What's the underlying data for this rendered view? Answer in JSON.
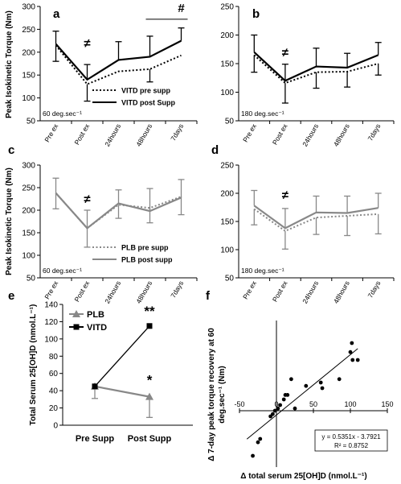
{
  "figure": {
    "shared_ylabel_top": "Peak Isokinetic Torque (Nm)",
    "shared_ylabel_mid": "Peak Isokinetic Torque (Nm)"
  },
  "chart_data": [
    {
      "panel": "a",
      "type": "line",
      "categories": [
        "Pre ex",
        "Post ex",
        "24hours",
        "48hours",
        "7days"
      ],
      "ylim": [
        50,
        300
      ],
      "yticks": [
        50,
        100,
        150,
        200,
        250,
        300
      ],
      "speed_label": "60 deg.sec⁻¹",
      "legend_position": "bottom-right",
      "significance": [
        {
          "symbol": "≠",
          "category": "Post ex",
          "y": 211
        },
        {
          "symbol": "#",
          "category": "7days",
          "y": 288,
          "bracket_from": "48hours",
          "bracket_to": "7days",
          "bracket_y": 272
        }
      ],
      "series": [
        {
          "name": "VITD pre supp",
          "style": "dotted",
          "color": "#000000",
          "values": [
            215,
            130,
            158,
            163,
            193
          ],
          "err_down": [
            35,
            37,
            0,
            28,
            0
          ],
          "err_up": [
            0,
            0,
            0,
            0,
            0
          ]
        },
        {
          "name": "VITD post Supp",
          "style": "solid",
          "color": "#000000",
          "values": [
            218,
            140,
            183,
            190,
            225
          ],
          "err_down": [
            0,
            0,
            0,
            0,
            0
          ],
          "err_up": [
            28,
            33,
            40,
            45,
            28
          ]
        }
      ]
    },
    {
      "panel": "b",
      "type": "line",
      "categories": [
        "Pre ex",
        "Post ex",
        "24hours",
        "48hours",
        "7days"
      ],
      "ylim": [
        50,
        250
      ],
      "yticks": [
        50,
        100,
        150,
        200,
        250
      ],
      "speed_label": "180 deg.sec⁻¹",
      "significance": [
        {
          "symbol": "≠",
          "category": "Post ex",
          "y": 163
        }
      ],
      "series": [
        {
          "name": "VITD pre supp",
          "style": "dotted",
          "color": "#000000",
          "values": [
            165,
            116,
            135,
            136,
            150
          ],
          "err_down": [
            30,
            35,
            28,
            27,
            20
          ],
          "err_up": [
            0,
            0,
            0,
            0,
            0
          ]
        },
        {
          "name": "VITD post Supp",
          "style": "solid",
          "color": "#000000",
          "values": [
            170,
            120,
            145,
            143,
            165
          ],
          "err_down": [
            0,
            0,
            0,
            0,
            0
          ],
          "err_up": [
            30,
            29,
            32,
            25,
            22
          ]
        }
      ]
    },
    {
      "panel": "c",
      "type": "line",
      "categories": [
        "Pre ex",
        "Post ex",
        "24hours",
        "48hours",
        "7days"
      ],
      "ylim": [
        50,
        300
      ],
      "yticks": [
        50,
        100,
        150,
        200,
        250,
        300
      ],
      "speed_label": "60 deg.sec⁻¹",
      "legend_position": "bottom-right",
      "significance": [
        {
          "symbol": "≠",
          "category": "Post ex",
          "y": 216
        }
      ],
      "series": [
        {
          "name": "PLB pre supp",
          "style": "dotted",
          "color": "#888888",
          "values": [
            238,
            160,
            212,
            205,
            230
          ],
          "err_down": [
            35,
            42,
            30,
            33,
            40
          ],
          "err_up": [
            0,
            0,
            0,
            0,
            0
          ]
        },
        {
          "name": "PLB post supp",
          "style": "solid",
          "color": "#888888",
          "values": [
            238,
            160,
            215,
            198,
            228
          ],
          "err_down": [
            0,
            0,
            0,
            0,
            0
          ],
          "err_up": [
            33,
            40,
            30,
            50,
            40
          ]
        }
      ]
    },
    {
      "panel": "d",
      "type": "line",
      "categories": [
        "Pre ex",
        "Post ex",
        "24hours",
        "48hours",
        "7days"
      ],
      "ylim": [
        50,
        250
      ],
      "yticks": [
        50,
        100,
        150,
        200,
        250
      ],
      "speed_label": "180 deg.sec⁻¹",
      "significance": [
        {
          "symbol": "≠",
          "category": "Post ex",
          "y": 190
        }
      ],
      "series": [
        {
          "name": "PLB pre supp",
          "style": "dotted",
          "color": "#888888",
          "values": [
            172,
            133,
            157,
            160,
            163
          ],
          "err_down": [
            28,
            32,
            30,
            35,
            35
          ],
          "err_up": [
            0,
            0,
            0,
            0,
            0
          ]
        },
        {
          "name": "PLB post supp",
          "style": "solid",
          "color": "#888888",
          "values": [
            178,
            138,
            166,
            165,
            174
          ],
          "err_down": [
            0,
            0,
            0,
            0,
            0
          ],
          "err_up": [
            27,
            35,
            29,
            30,
            26
          ]
        }
      ]
    },
    {
      "panel": "e",
      "type": "line",
      "categories": [
        "Pre Supp",
        "Post Supp"
      ],
      "ylim": [
        0,
        140
      ],
      "yticks": [
        0,
        20,
        40,
        60,
        80,
        100,
        120,
        140
      ],
      "ylabel": "Total Serum 25[OH]D (nmol.L⁻¹)",
      "legend_position": "top-left",
      "significance": [
        {
          "symbol": "**",
          "category": "Post Supp",
          "y": 127
        },
        {
          "symbol": "*",
          "category": "Post Supp",
          "y": 47
        }
      ],
      "series": [
        {
          "name": "PLB",
          "marker": "triangle",
          "color": "#888888",
          "values": [
            45,
            33
          ],
          "err_down": [
            14,
            24
          ],
          "err_up": [
            0,
            0
          ]
        },
        {
          "name": "VITD",
          "marker": "square",
          "color": "#000000",
          "values": [
            45,
            115
          ],
          "err_down": [
            0,
            0
          ],
          "err_up": [
            0,
            0
          ]
        }
      ]
    },
    {
      "panel": "f",
      "type": "scatter",
      "xlim": [
        -50,
        150
      ],
      "ylim": [
        -50,
        80
      ],
      "xticks": [
        -50,
        0,
        50,
        100,
        150
      ],
      "xlabel": "Δ total serum 25[OH]D (nmol.L⁻¹)",
      "ylabel_line1": "Δ 7-day peak torque recovery at 60",
      "ylabel_line2": "deg.sec⁻¹ (Nm)",
      "equation": "y = 0.5351x - 3.7921",
      "r_squared": "R² = 0.8752",
      "trendline": {
        "slope": 0.5351,
        "intercept": -3.7921
      },
      "points": [
        [
          -32,
          -40
        ],
        [
          -25,
          -28
        ],
        [
          -22,
          -25
        ],
        [
          -8,
          -5
        ],
        [
          -5,
          -3
        ],
        [
          -2,
          0
        ],
        [
          2,
          2
        ],
        [
          5,
          5
        ],
        [
          10,
          10
        ],
        [
          12,
          14
        ],
        [
          15,
          14
        ],
        [
          20,
          28
        ],
        [
          25,
          2
        ],
        [
          40,
          22
        ],
        [
          60,
          25
        ],
        [
          62,
          20
        ],
        [
          85,
          28
        ],
        [
          100,
          52
        ],
        [
          102,
          60
        ],
        [
          103,
          45
        ],
        [
          110,
          45
        ]
      ]
    }
  ]
}
